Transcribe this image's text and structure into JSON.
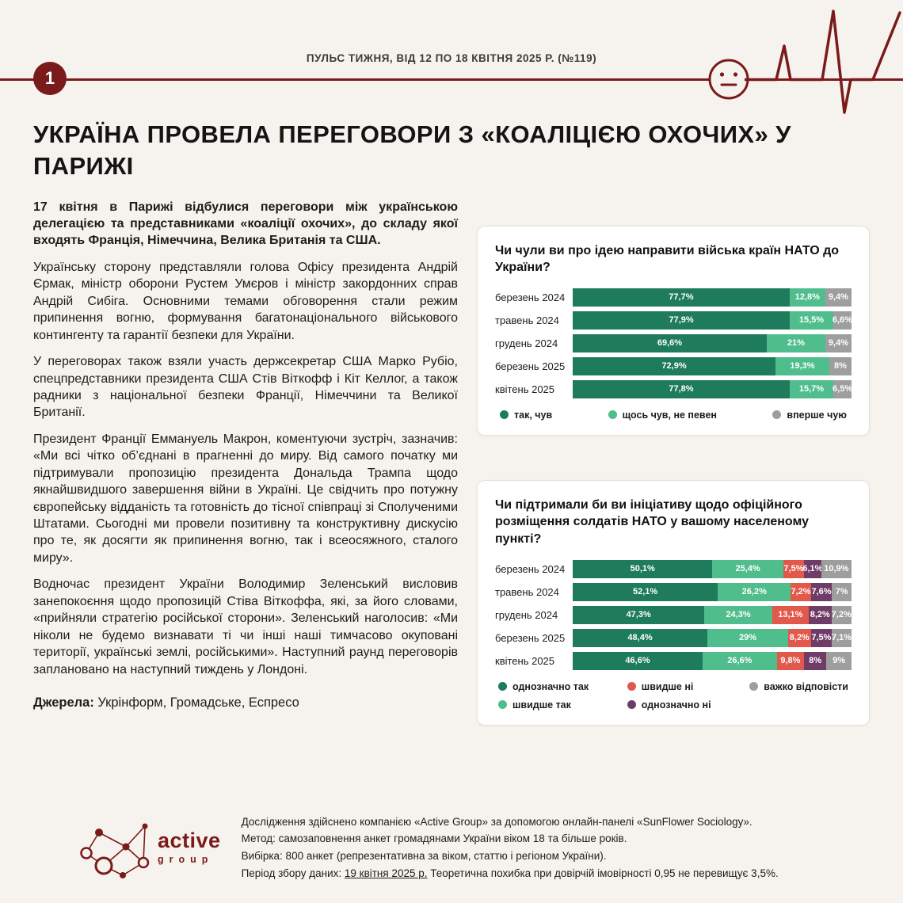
{
  "colors": {
    "accent_maroon": "#7a1a1a",
    "dark_green": "#1e7b5b",
    "light_green": "#4fbd8c",
    "gray": "#9e9e9e",
    "red": "#e2584a",
    "purple": "#6e3c67",
    "page_bg": "#f6f3ee",
    "card_bg": "#ffffff"
  },
  "header": {
    "page_number": "1",
    "title": "ПУЛЬС ТИЖНЯ, ВІД 12 ПО 18 КВІТНЯ 2025 Р. (№119)"
  },
  "article": {
    "title": "УКРАЇНА ПРОВЕЛА ПЕРЕГОВОРИ З «КОАЛІЦІЄЮ ОХОЧИХ» У ПАРИЖІ",
    "lead": "17 квітня в Парижі відбулися переговори між українською делегацією та представниками «коаліції охочих», до складу якої входять Франція, Німеччина, Велика Британія та США.",
    "paragraphs": [
      "Українську сторону представляли голова Офісу президента Андрій Єрмак, міністр оборони Рустем Умєров і міністр закордонних справ Андрій Сибіга. Основними темами обговорення стали режим припинення вогню, формування багатонаціонального військового контингенту та гарантії безпеки для України.",
      "У переговорах також взяли участь держсекретар США Марко Рубіо, спецпредставники президента США Стів Віткофф і Кіт Келлог, а також радники з національної безпеки Франції, Німеччини та Великої Британії.",
      "Президент Франції Еммануель Макрон, коментуючи зустріч, зазначив: «Ми всі чітко об’єднані в прагненні до миру. Від самого початку ми підтримували пропозицію президента Дональда Трампа щодо якнайшвидшого завершення війни в Україні. Це свідчить про потужну європейську відданість та готовність до тісної співпраці зі Сполученими Штатами. Сьогодні ми провели позитивну та конструктивну дискусію про те, як досягти як припинення вогню, так і всеосяжного, сталого миру».",
      "Водночас президент України Володимир Зеленський висловив занепокоєння щодо пропозицій Стіва Віткоффа, які, за його словами, «прийняли стратегію російської сторони». Зеленський наголосив: «Ми ніколи не будемо визнавати ті чи інші наші тимчасово окуповані території, українські землі, російськими». Наступний раунд переговорів заплановано на наступний тиждень у Лондоні."
    ],
    "sources_label": "Джерела:",
    "sources": "Укрінформ, Громадське, Еспресо"
  },
  "chart_data": [
    {
      "type": "bar",
      "stacked": true,
      "orientation": "horizontal",
      "unit": "%",
      "xlim": [
        0,
        100
      ],
      "legend_position": "bottom",
      "title": "Чи чули ви про ідею направити війська країн НАТО до України?",
      "categories": [
        "березень 2024",
        "травень 2024",
        "грудень 2024",
        "березень 2025",
        "квітень 2025"
      ],
      "series": [
        {
          "name": "так, чув",
          "color": "#1e7b5b",
          "values": [
            77.7,
            77.9,
            69.6,
            72.9,
            77.8
          ],
          "labels": [
            "77,7%",
            "77,9%",
            "69,6%",
            "72,9%",
            "77,8%"
          ]
        },
        {
          "name": "щось чув, не певен",
          "color": "#4fbd8c",
          "values": [
            12.8,
            15.5,
            21,
            19.3,
            15.7
          ],
          "labels": [
            "12,8%",
            "15,5%",
            "21%",
            "19,3%",
            "15,7%"
          ]
        },
        {
          "name": "вперше чую",
          "color": "#9e9e9e",
          "values": [
            9.4,
            6.6,
            9.4,
            8,
            6.5
          ],
          "labels": [
            "9,4%",
            "6,6%",
            "9,4%",
            "8%",
            "6,5%"
          ]
        }
      ]
    },
    {
      "type": "bar",
      "stacked": true,
      "orientation": "horizontal",
      "unit": "%",
      "xlim": [
        0,
        100
      ],
      "legend_position": "bottom",
      "title": "Чи підтримали би ви ініціативу щодо офіційного розміщення солдатів НАТО у вашому населеному пункті?",
      "categories": [
        "березень 2024",
        "травень 2024",
        "грудень 2024",
        "березень 2025",
        "квітень 2025"
      ],
      "series": [
        {
          "name": "однозначно так",
          "color": "#1e7b5b",
          "values": [
            50.1,
            52.1,
            47.3,
            48.4,
            46.6
          ],
          "labels": [
            "50,1%",
            "52,1%",
            "47,3%",
            "48,4%",
            "46,6%"
          ]
        },
        {
          "name": "швидше так",
          "color": "#4fbd8c",
          "values": [
            25.4,
            26.2,
            24.3,
            29,
            26.6
          ],
          "labels": [
            "25,4%",
            "26,2%",
            "24,3%",
            "29%",
            "26,6%"
          ]
        },
        {
          "name": "швидше ні",
          "color": "#e2584a",
          "values": [
            7.5,
            7.2,
            13.1,
            8.2,
            9.8
          ],
          "labels": [
            "7,5%",
            "7,2%",
            "13,1%",
            "8,2%",
            "9,8%"
          ]
        },
        {
          "name": "однозначно ні",
          "color": "#6e3c67",
          "values": [
            6.1,
            7.6,
            8.2,
            7.5,
            8
          ],
          "labels": [
            "6,1%",
            "7,6%",
            "8,2%",
            "7,5%",
            "8%"
          ]
        },
        {
          "name": "важко відповісти",
          "color": "#9e9e9e",
          "values": [
            10.9,
            7,
            7.2,
            7.1,
            9
          ],
          "labels": [
            "10,9%",
            "7%",
            "7,2%",
            "7,1%",
            "9%"
          ]
        }
      ]
    }
  ],
  "footer": {
    "brand": "active",
    "brand_sub": "group",
    "line1": "Дослідження здійснено компанією «Active Group» за допомогою онлайн-панелі «SunFlower Sociology».",
    "line2": "Метод: самозаповнення анкет громадянами України віком 18 та більше років.",
    "line3": "Вибірка: 800 анкет (репрезентативна за віком, статтю і регіоном України).",
    "line4_prefix": "Період збору даних: ",
    "line4_underline": "19 квітня 2025 р.",
    "line4_suffix": " Теоретична похибка при довірчій імовірності 0,95 не перевищує 3,5%."
  }
}
